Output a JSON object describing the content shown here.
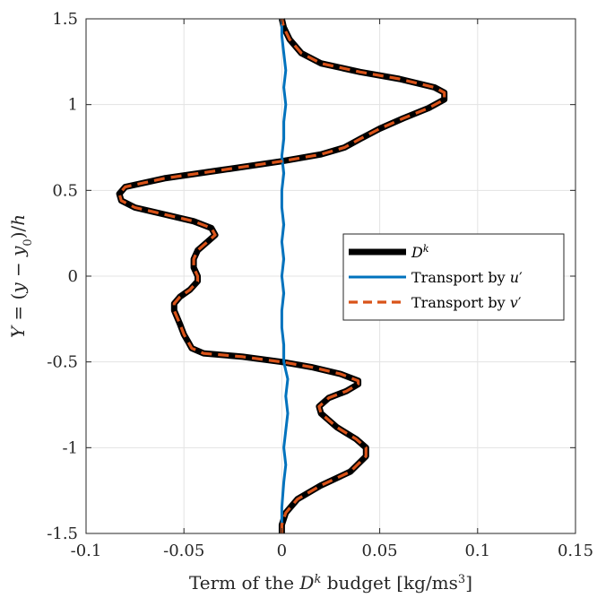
{
  "chart_data": {
    "type": "line",
    "title": "",
    "xlabel": "Term of the D^k budget [kg/ms^3]",
    "xlabel_parts": {
      "pre": "Term of the ",
      "var": "D",
      "sup": "k",
      "post": " budget [kg/ms",
      "unit_sup": "3",
      "close": "]"
    },
    "ylabel": "Y = (y − y0)/h",
    "ylabel_parts": {
      "lhs": "Y",
      "eq": " = (",
      "y": "y",
      "minus": " − ",
      "y0": "y",
      "y0_sub": "0",
      "rp": ")/",
      "h": "h"
    },
    "xlim": [
      -0.1,
      0.15
    ],
    "ylim": [
      -1.5,
      1.5
    ],
    "xticks": [
      -0.1,
      -0.05,
      0,
      0.05,
      0.1,
      0.15
    ],
    "xtick_labels": [
      "-0.1",
      "-0.05",
      "0",
      "0.05",
      "0.1",
      "0.15"
    ],
    "yticks": [
      -1.5,
      -1,
      -0.5,
      0,
      0.5,
      1,
      1.5
    ],
    "ytick_labels": [
      "-1.5",
      "-1",
      "-0.5",
      "0",
      "0.5",
      "1",
      "1.5"
    ],
    "grid": true,
    "legend_position": "right",
    "legend": [
      {
        "label": "D",
        "sup": "k",
        "series": 0
      },
      {
        "label": "Transport by ",
        "var": "u",
        "prime": "′",
        "series": 1
      },
      {
        "label": "Transport by ",
        "var": "v",
        "prime": "′",
        "series": 2
      }
    ],
    "series": [
      {
        "color": "#000000",
        "style": "solid",
        "points": [
          [
            0.0,
            -1.5
          ],
          [
            0.0,
            -1.45
          ],
          [
            0.002,
            -1.38
          ],
          [
            0.008,
            -1.3
          ],
          [
            0.02,
            -1.22
          ],
          [
            0.035,
            -1.14
          ],
          [
            0.043,
            -1.05
          ],
          [
            0.043,
            -1.0
          ],
          [
            0.038,
            -0.95
          ],
          [
            0.028,
            -0.88
          ],
          [
            0.02,
            -0.8
          ],
          [
            0.019,
            -0.76
          ],
          [
            0.024,
            -0.71
          ],
          [
            0.033,
            -0.67
          ],
          [
            0.039,
            -0.63
          ],
          [
            0.039,
            -0.61
          ],
          [
            0.03,
            -0.57
          ],
          [
            0.015,
            -0.53
          ],
          [
            0.0,
            -0.5
          ],
          [
            -0.02,
            -0.47
          ],
          [
            -0.04,
            -0.45
          ],
          [
            -0.046,
            -0.42
          ],
          [
            -0.048,
            -0.38
          ],
          [
            -0.05,
            -0.34
          ],
          [
            -0.052,
            -0.28
          ],
          [
            -0.055,
            -0.2
          ],
          [
            -0.055,
            -0.16
          ],
          [
            -0.052,
            -0.12
          ],
          [
            -0.047,
            -0.08
          ],
          [
            -0.043,
            -0.03
          ],
          [
            -0.043,
            0.0
          ],
          [
            -0.045,
            0.05
          ],
          [
            -0.045,
            0.1
          ],
          [
            -0.043,
            0.15
          ],
          [
            -0.038,
            0.2
          ],
          [
            -0.034,
            0.24
          ],
          [
            -0.036,
            0.28
          ],
          [
            -0.045,
            0.32
          ],
          [
            -0.06,
            0.36
          ],
          [
            -0.075,
            0.4
          ],
          [
            -0.082,
            0.44
          ],
          [
            -0.083,
            0.48
          ],
          [
            -0.08,
            0.52
          ],
          [
            -0.06,
            0.57
          ],
          [
            -0.03,
            0.62
          ],
          [
            0.0,
            0.67
          ],
          [
            0.02,
            0.71
          ],
          [
            0.032,
            0.75
          ],
          [
            0.04,
            0.8
          ],
          [
            0.05,
            0.86
          ],
          [
            0.062,
            0.92
          ],
          [
            0.075,
            0.98
          ],
          [
            0.083,
            1.03
          ],
          [
            0.083,
            1.07
          ],
          [
            0.078,
            1.1
          ],
          [
            0.06,
            1.15
          ],
          [
            0.04,
            1.19
          ],
          [
            0.02,
            1.24
          ],
          [
            0.01,
            1.3
          ],
          [
            0.004,
            1.38
          ],
          [
            0.001,
            1.45
          ],
          [
            0.0,
            1.5
          ]
        ]
      },
      {
        "color": "#0072BD",
        "style": "solid",
        "points": [
          [
            0.0,
            -1.5
          ],
          [
            0.0,
            -1.35
          ],
          [
            0.001,
            -1.2
          ],
          [
            0.002,
            -1.1
          ],
          [
            0.001,
            -1.0
          ],
          [
            0.002,
            -0.9
          ],
          [
            0.003,
            -0.8
          ],
          [
            0.002,
            -0.7
          ],
          [
            0.003,
            -0.6
          ],
          [
            0.001,
            -0.5
          ],
          [
            0.001,
            -0.4
          ],
          [
            0.0,
            -0.3
          ],
          [
            0.0,
            -0.2
          ],
          [
            0.001,
            -0.1
          ],
          [
            0.0,
            0.0
          ],
          [
            0.001,
            0.1
          ],
          [
            0.0,
            0.2
          ],
          [
            0.001,
            0.3
          ],
          [
            0.0,
            0.4
          ],
          [
            0.0,
            0.5
          ],
          [
            0.001,
            0.6
          ],
          [
            0.0,
            0.7
          ],
          [
            0.001,
            0.8
          ],
          [
            0.001,
            0.9
          ],
          [
            0.002,
            1.0
          ],
          [
            0.001,
            1.1
          ],
          [
            0.002,
            1.2
          ],
          [
            0.001,
            1.3
          ],
          [
            0.0,
            1.4
          ],
          [
            0.0,
            1.5
          ]
        ]
      },
      {
        "color": "#D95319",
        "style": "dashed",
        "points": [
          [
            0.0,
            -1.5
          ],
          [
            0.0,
            -1.45
          ],
          [
            0.002,
            -1.38
          ],
          [
            0.008,
            -1.3
          ],
          [
            0.02,
            -1.22
          ],
          [
            0.035,
            -1.14
          ],
          [
            0.043,
            -1.05
          ],
          [
            0.043,
            -1.0
          ],
          [
            0.038,
            -0.95
          ],
          [
            0.028,
            -0.88
          ],
          [
            0.02,
            -0.8
          ],
          [
            0.019,
            -0.76
          ],
          [
            0.024,
            -0.71
          ],
          [
            0.033,
            -0.67
          ],
          [
            0.039,
            -0.63
          ],
          [
            0.039,
            -0.61
          ],
          [
            0.03,
            -0.57
          ],
          [
            0.015,
            -0.53
          ],
          [
            0.0,
            -0.5
          ],
          [
            -0.02,
            -0.47
          ],
          [
            -0.04,
            -0.45
          ],
          [
            -0.046,
            -0.42
          ],
          [
            -0.048,
            -0.38
          ],
          [
            -0.05,
            -0.34
          ],
          [
            -0.052,
            -0.28
          ],
          [
            -0.055,
            -0.2
          ],
          [
            -0.055,
            -0.16
          ],
          [
            -0.052,
            -0.12
          ],
          [
            -0.047,
            -0.08
          ],
          [
            -0.043,
            -0.03
          ],
          [
            -0.043,
            0.0
          ],
          [
            -0.045,
            0.05
          ],
          [
            -0.045,
            0.1
          ],
          [
            -0.043,
            0.15
          ],
          [
            -0.038,
            0.2
          ],
          [
            -0.034,
            0.24
          ],
          [
            -0.036,
            0.28
          ],
          [
            -0.045,
            0.32
          ],
          [
            -0.06,
            0.36
          ],
          [
            -0.075,
            0.4
          ],
          [
            -0.082,
            0.44
          ],
          [
            -0.083,
            0.48
          ],
          [
            -0.08,
            0.52
          ],
          [
            -0.06,
            0.57
          ],
          [
            -0.03,
            0.62
          ],
          [
            0.0,
            0.67
          ],
          [
            0.02,
            0.71
          ],
          [
            0.032,
            0.75
          ],
          [
            0.04,
            0.8
          ],
          [
            0.05,
            0.86
          ],
          [
            0.062,
            0.92
          ],
          [
            0.075,
            0.98
          ],
          [
            0.083,
            1.03
          ],
          [
            0.083,
            1.07
          ],
          [
            0.078,
            1.1
          ],
          [
            0.06,
            1.15
          ],
          [
            0.04,
            1.19
          ],
          [
            0.02,
            1.24
          ],
          [
            0.01,
            1.3
          ],
          [
            0.004,
            1.38
          ],
          [
            0.001,
            1.45
          ],
          [
            0.0,
            1.5
          ]
        ]
      }
    ]
  }
}
